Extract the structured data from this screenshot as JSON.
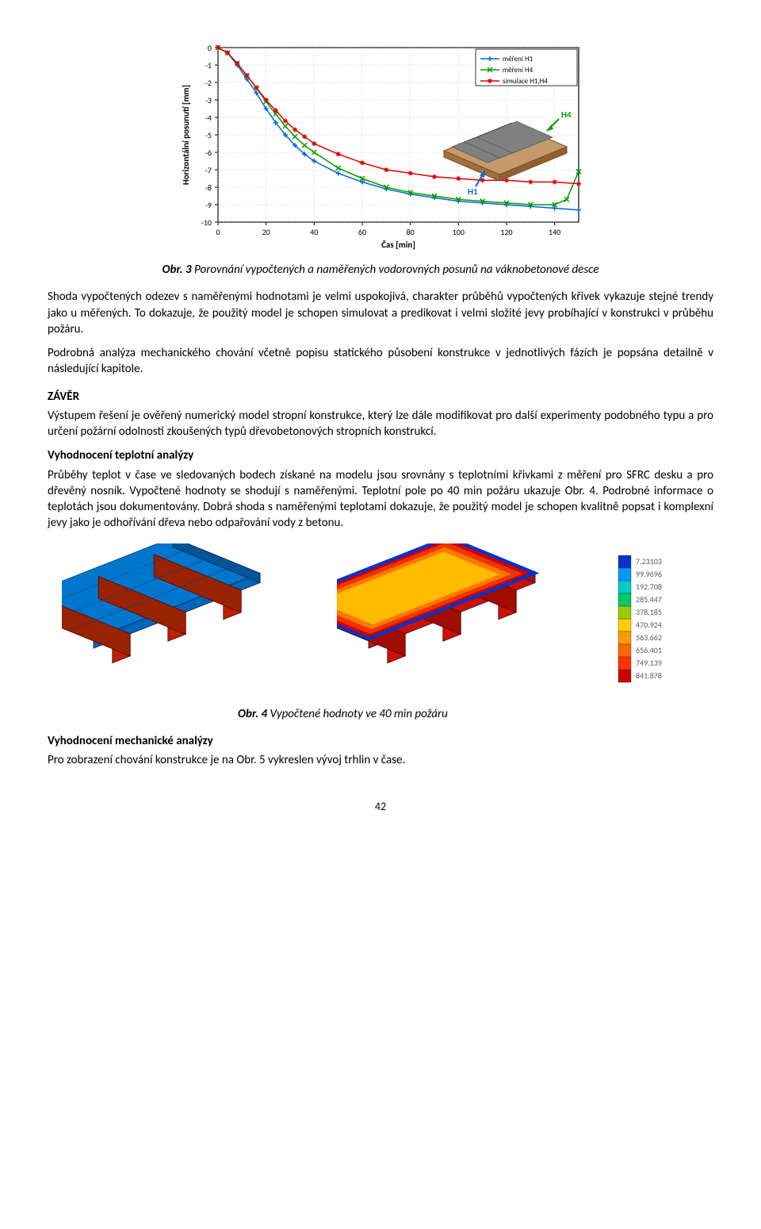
{
  "figure3": {
    "xlabel": "Čas [min]",
    "ylabel": "Horizontální posunutí [mm]",
    "xlim": [
      0,
      150
    ],
    "ylim": [
      -10,
      0
    ],
    "xticks": [
      0,
      20,
      40,
      60,
      80,
      100,
      120,
      140
    ],
    "yticks": [
      -10,
      -9,
      -8,
      -7,
      -6,
      -5,
      -4,
      -3,
      -2,
      -1,
      0
    ],
    "grid_color": "#b0b0b0",
    "background": "#ffffff",
    "axis_color": "#000000",
    "label_fontsize": 11,
    "tick_fontsize": 10,
    "series": [
      {
        "name": "měření H1",
        "color": "#0066dd",
        "marker": "plus",
        "x": [
          0,
          4,
          8,
          12,
          16,
          20,
          24,
          28,
          32,
          36,
          40,
          50,
          60,
          70,
          80,
          90,
          100,
          110,
          120,
          130,
          140,
          150
        ],
        "y": [
          0,
          -0.3,
          -1.0,
          -1.8,
          -2.6,
          -3.5,
          -4.3,
          -5.0,
          -5.6,
          -6.1,
          -6.5,
          -7.2,
          -7.7,
          -8.1,
          -8.4,
          -8.6,
          -8.8,
          -8.9,
          -9.0,
          -9.1,
          -9.2,
          -9.3
        ]
      },
      {
        "name": "měření H4",
        "color": "#00a000",
        "marker": "x",
        "x": [
          0,
          4,
          8,
          12,
          16,
          20,
          24,
          28,
          32,
          36,
          40,
          50,
          60,
          70,
          80,
          90,
          100,
          110,
          120,
          130,
          140,
          145,
          150
        ],
        "y": [
          0,
          -0.3,
          -0.9,
          -1.6,
          -2.3,
          -3.1,
          -3.8,
          -4.5,
          -5.1,
          -5.6,
          -6.0,
          -6.9,
          -7.5,
          -8.0,
          -8.3,
          -8.5,
          -8.7,
          -8.8,
          -8.9,
          -9.0,
          -9.0,
          -8.7,
          -7.1
        ]
      },
      {
        "name": "simulace H1,H4",
        "color": "#e00000",
        "marker": "star",
        "x": [
          0,
          4,
          8,
          12,
          16,
          20,
          24,
          28,
          32,
          36,
          40,
          50,
          60,
          70,
          80,
          90,
          100,
          110,
          120,
          130,
          140,
          150
        ],
        "y": [
          0,
          -0.3,
          -0.9,
          -1.6,
          -2.3,
          -3.0,
          -3.6,
          -4.2,
          -4.7,
          -5.1,
          -5.5,
          -6.1,
          -6.6,
          -7.0,
          -7.2,
          -7.4,
          -7.5,
          -7.6,
          -7.6,
          -7.7,
          -7.7,
          -7.8
        ]
      }
    ],
    "inset": {
      "labels": [
        {
          "text": "H4",
          "color": "#00a000"
        },
        {
          "text": "H1",
          "color": "#0066dd"
        }
      ],
      "panel_color": "#c49a6c",
      "slab_color": "#808080"
    },
    "caption_prefix": "Obr. 3",
    "caption_text": "Porovnání vypočtených a naměřených vodorovných posunů na váknobetonové desce"
  },
  "text": {
    "p1": "Shoda vypočtených odezev s naměřenými hodnotami je velmi uspokojivá, charakter průběhů vypočtených křivek vykazuje stejné trendy jako u měřených. To dokazuje, že použitý model je schopen simulovat a predikovat i velmi složité jevy probíhající v konstrukci v průběhu požáru.",
    "p2": "Podrobná analýza mechanického chování včetně popisu statického působení konstrukce v jednotlivých fázích je popsána detailně v následující kapitole.",
    "h_zaver": "ZÁVĚR",
    "p3": "Výstupem řešení je ověřený numerický model stropní konstrukce, který lze dále modifikovat pro další experimenty podobného typu a pro určení požární odolnosti zkoušených typů dřevobetonových stropních konstrukcí.",
    "h_teplot": "Vyhodnocení teplotní analýzy",
    "p4": "Průběhy teplot v čase ve sledovaných bodech získané na modelu jsou srovnány s teplotními křivkami z měření pro SFRC desku a pro dřevěný nosník. Vypočtené hodnoty se shodují s naměřenými. Teplotní pole po 40 min požáru ukazuje Obr. 4. Podrobné informace o teplotách jsou dokumentovány. Dobrá shoda s naměřenými teplotami dokazuje, že použitý model je schopen kvalitně popsat i komplexní jevy jako je odhořívání dřeva nebo odpařování vody z betonu."
  },
  "figure4": {
    "colorbar": {
      "colors": [
        "#0033cc",
        "#0099ff",
        "#00cccc",
        "#00cc66",
        "#99cc00",
        "#ffcc00",
        "#ff9900",
        "#ff6600",
        "#ff3300",
        "#cc0000"
      ],
      "values": [
        7.23103,
        99.9696,
        192.708,
        285.447,
        378.185,
        470.924,
        563.662,
        656.401,
        749.139,
        841.878
      ],
      "fontsize": 10,
      "text_color": "#5a5a5a"
    },
    "caption_prefix": "Obr. 4",
    "caption_text": "Vypočtené hodnoty ve 40 min požáru"
  },
  "mech": {
    "h": "Vyhodnocení mechanické analýzy",
    "p": "Pro zobrazení chování konstrukce  je na Obr. 5 vykreslen vývoj trhlin v čase."
  },
  "page": "42"
}
